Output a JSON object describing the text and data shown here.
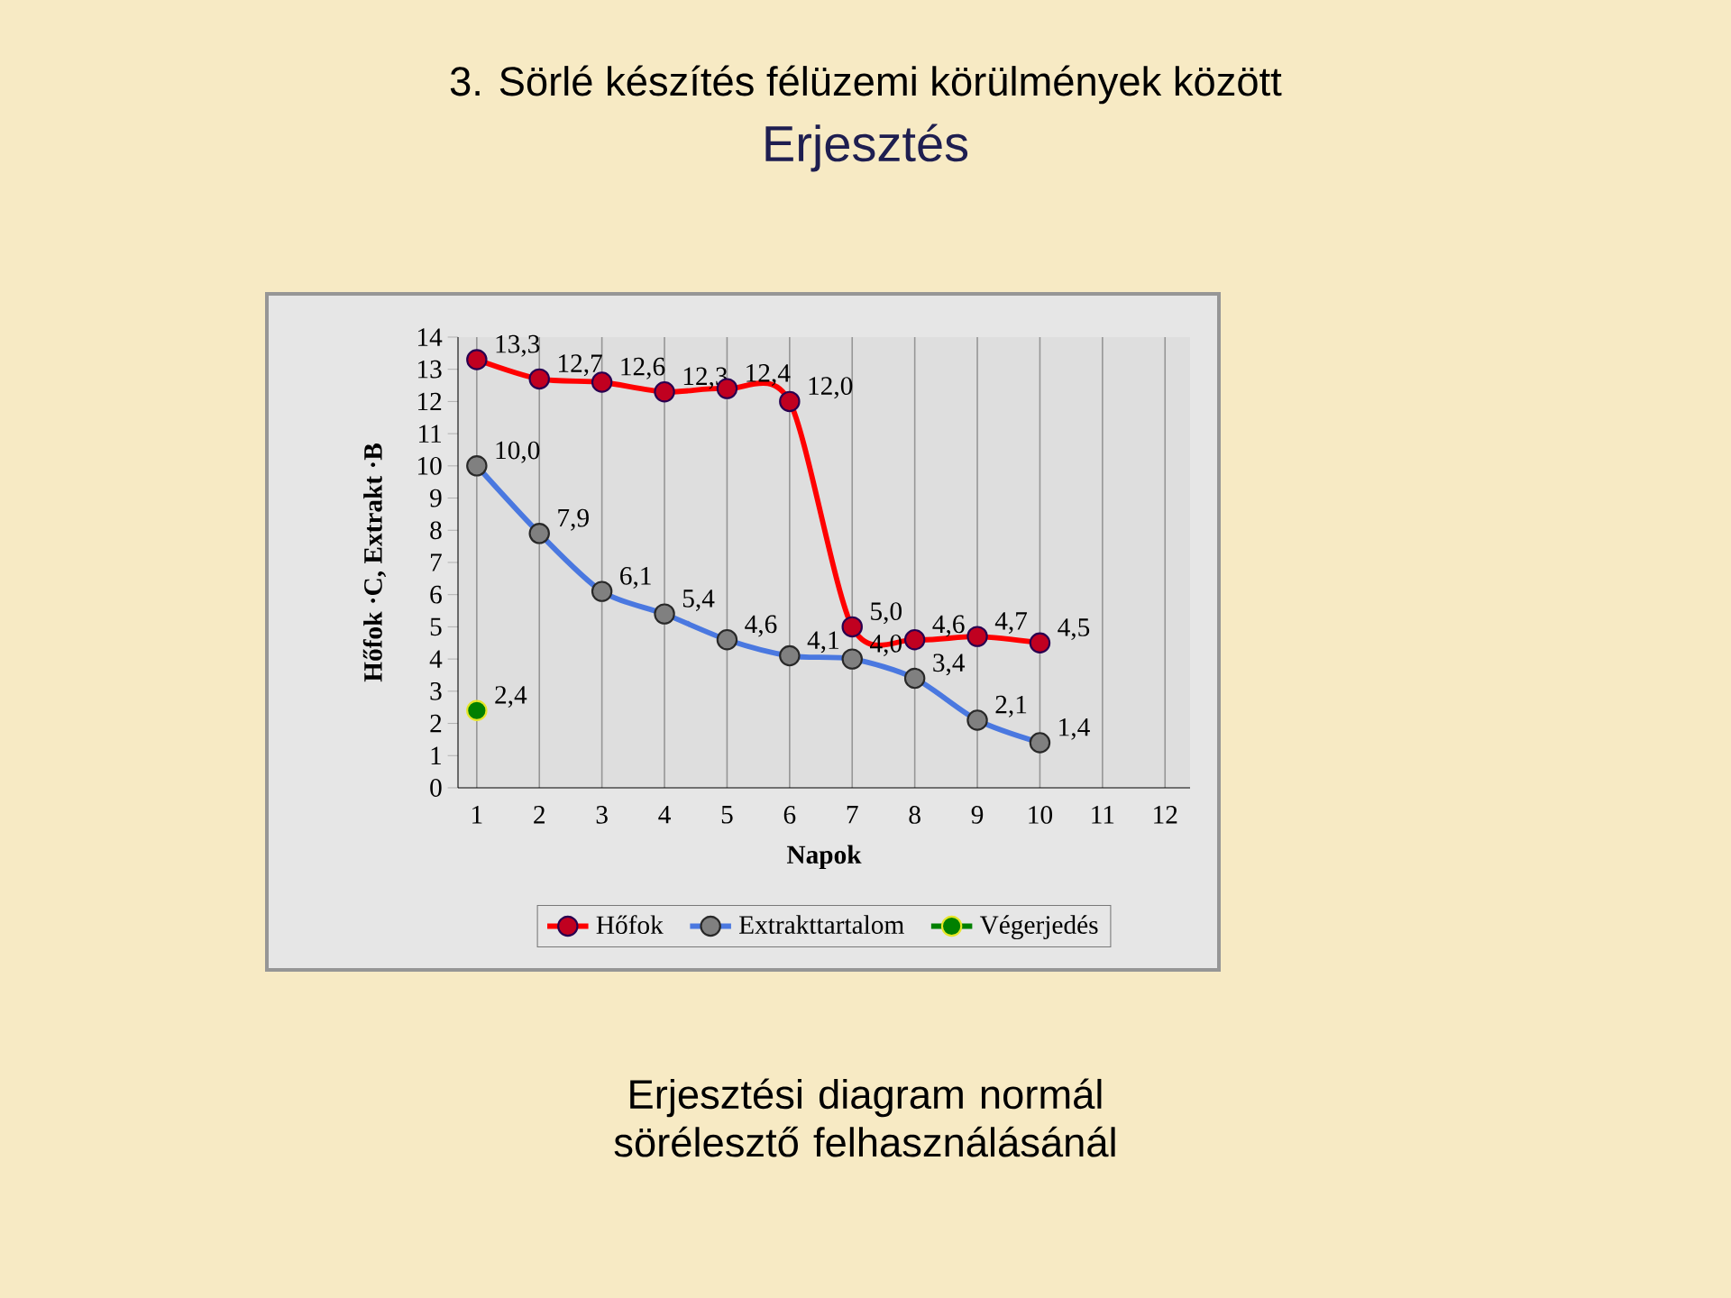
{
  "chart_data": {
    "type": "line",
    "title": "3. Sörlé készítés félüzemi körülmények között",
    "subtitle": "Erjesztés",
    "xlabel": "Napok",
    "ylabel": "Hőfok ·C, Extrakt ·B",
    "annotations": [
      "Erjesztési diagram normál sörélesztő felhasználásánál"
    ],
    "categories": [
      "1",
      "2",
      "3",
      "4",
      "5",
      "6",
      "7",
      "8",
      "9",
      "10",
      "11",
      "12"
    ],
    "series": [
      {
        "name": "Hőfok",
        "color": "#ff0000",
        "values": [
          13.3,
          12.7,
          12.6,
          12.3,
          12.4,
          12.0,
          5.0,
          4.6,
          4.7,
          4.5,
          null,
          null
        ],
        "value_labels": [
          "13,3",
          "12,7",
          "12,6",
          "12,3",
          "12,4",
          "12,0",
          "5,0",
          "4,6",
          "4,7",
          "4,5",
          null,
          null
        ]
      },
      {
        "name": "Extrakttartalom",
        "color": "#4a78e0",
        "values": [
          10.0,
          7.9,
          6.1,
          5.4,
          4.6,
          4.1,
          4.0,
          3.4,
          2.1,
          1.4,
          null,
          null
        ],
        "value_labels": [
          "10,0",
          "7,9",
          "6,1",
          "5,4",
          "4,6",
          "4,1",
          "4,0",
          "3,4",
          "2,1",
          "1,4",
          null,
          null
        ]
      },
      {
        "name": "Végerjedés",
        "color": "#008000",
        "values": [
          2.4,
          null,
          null,
          null,
          null,
          null,
          null,
          null,
          null,
          null,
          null,
          null
        ],
        "value_labels": [
          "2,4",
          null,
          null,
          null,
          null,
          null,
          null,
          null,
          null,
          null,
          null,
          null
        ]
      }
    ],
    "ylim": [
      0,
      14
    ],
    "yticks": [
      0,
      1,
      2,
      3,
      4,
      5,
      6,
      7,
      8,
      9,
      10,
      11,
      12,
      13,
      14
    ],
    "grid": "x",
    "legend": "bottom",
    "marker": "circle",
    "line_style": "solid"
  }
}
